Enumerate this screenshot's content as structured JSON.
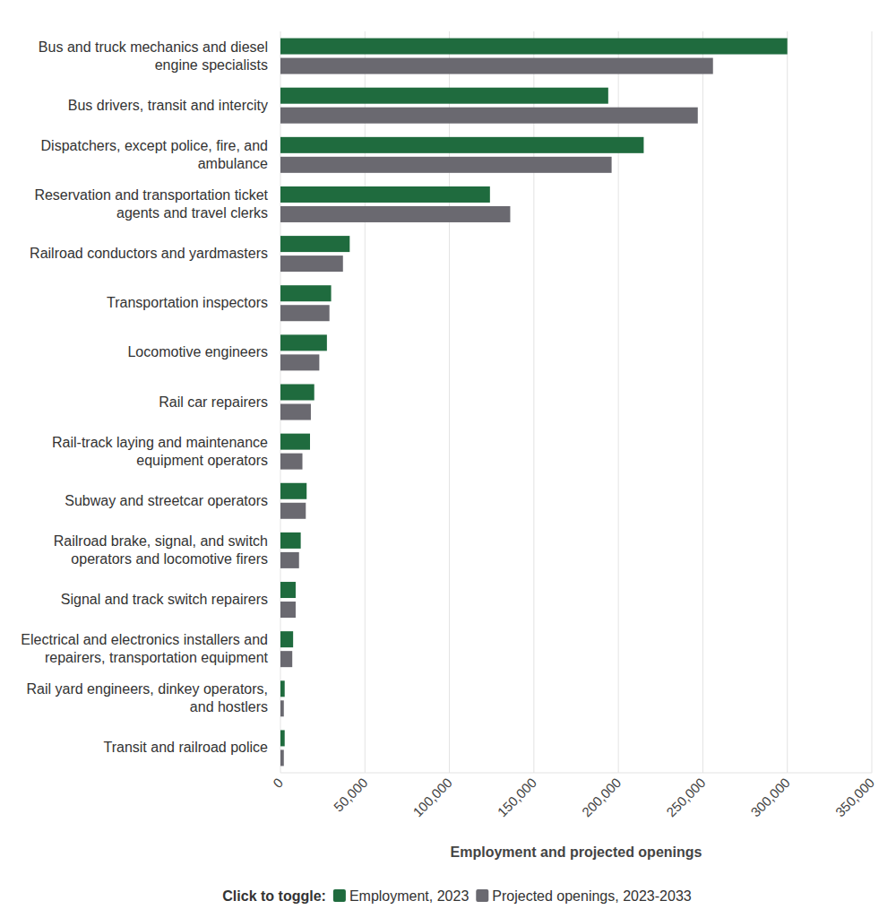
{
  "chart_data": {
    "type": "bar",
    "orientation": "horizontal",
    "categories": [
      "Bus and truck mechanics and diesel\nengine specialists",
      "Bus drivers, transit and intercity",
      "Dispatchers, except police, fire, and\nambulance",
      "Reservation and transportation ticket\nagents and travel clerks",
      "Railroad conductors and yardmasters",
      "Transportation inspectors",
      "Locomotive engineers",
      "Rail car repairers",
      "Rail-track laying and maintenance\nequipment operators",
      "Subway and streetcar operators",
      "Railroad brake, signal, and switch\noperators and locomotive firers",
      "Signal and track switch repairers",
      "Electrical and electronics installers and\nrepairers, transportation equipment",
      "Rail yard engineers, dinkey operators,\nand hostlers",
      "Transit and railroad police"
    ],
    "series": [
      {
        "name": "Employment, 2023",
        "color": "#1f6b3e",
        "values": [
          300000,
          194000,
          215000,
          124000,
          41000,
          30000,
          27500,
          20000,
          17500,
          15500,
          12000,
          9000,
          7500,
          2500,
          2500
        ]
      },
      {
        "name": "Projected openings, 2023-2033",
        "color": "#6a6970",
        "values": [
          256000,
          247000,
          196000,
          136000,
          37000,
          29000,
          23000,
          18000,
          13000,
          15000,
          11000,
          9000,
          7000,
          2000,
          2000
        ]
      }
    ],
    "x_label": "Employment and projected openings",
    "xlim": [
      0,
      350000
    ],
    "xticks": [
      0,
      {
        "value": 50000,
        "label": "50,000"
      },
      {
        "value": 100000,
        "label": "100,000"
      },
      {
        "value": 150000,
        "label": "150,000"
      },
      {
        "value": 200000,
        "label": "200,000"
      },
      {
        "value": 250000,
        "label": "250,000"
      },
      {
        "value": 300000,
        "label": "300,000"
      },
      {
        "value": 350000,
        "label": "350,000"
      }
    ],
    "grid": true,
    "legend": "bottom",
    "legend_title": "Click to toggle:"
  }
}
